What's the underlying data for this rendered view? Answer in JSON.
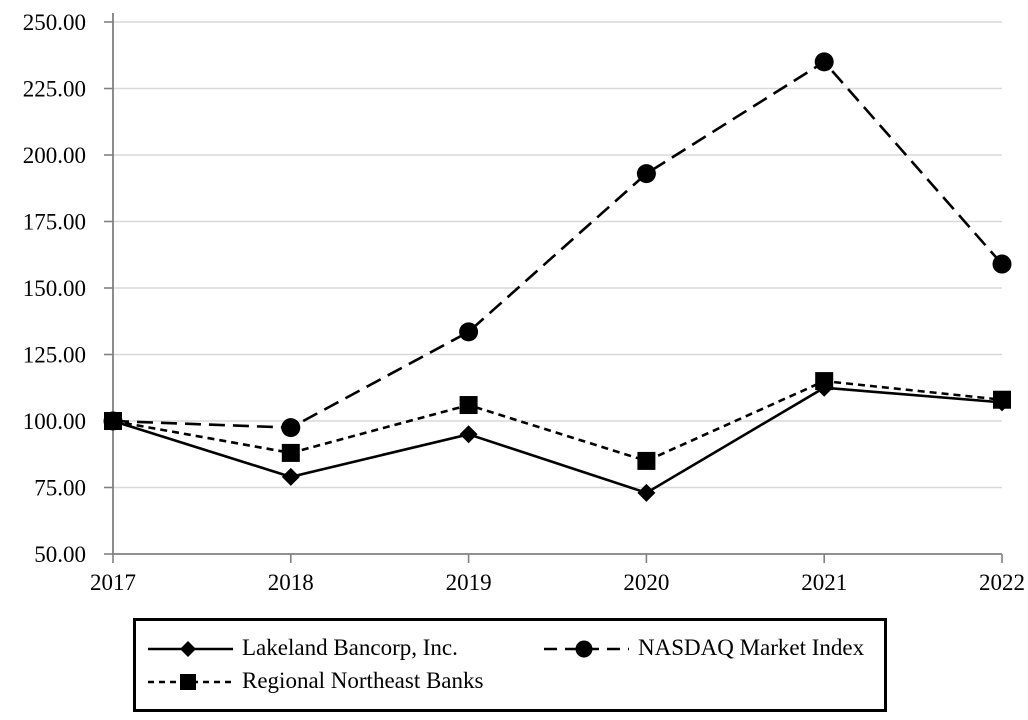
{
  "chart_data": {
    "type": "line",
    "title": "",
    "xlabel": "",
    "ylabel": "",
    "x_categories": [
      "2017",
      "2018",
      "2019",
      "2020",
      "2021",
      "2022"
    ],
    "series": [
      {
        "name": "Lakeland Bancorp, Inc.",
        "marker": "diamond",
        "line_style": "solid",
        "values": [
          100.0,
          79.0,
          95.0,
          73.0,
          112.5,
          107.0
        ]
      },
      {
        "name": "NASDAQ Market Index",
        "marker": "circle",
        "line_style": "long-dash",
        "values": [
          100.0,
          97.5,
          133.5,
          193.0,
          235.0,
          159.0
        ]
      },
      {
        "name": "Regional Northeast Banks",
        "marker": "square",
        "line_style": "short-dash",
        "values": [
          100.0,
          88.0,
          106.0,
          85.0,
          115.0,
          108.0
        ]
      }
    ],
    "ylim": [
      50,
      250
    ],
    "ytick_step": 25,
    "ytick_decimals": 2,
    "grid": "horizontal",
    "legend_position": "bottom",
    "colors": {
      "series": "#000000",
      "axis": "#808080",
      "grid": "#d9d9d9",
      "text": "#000000"
    }
  }
}
